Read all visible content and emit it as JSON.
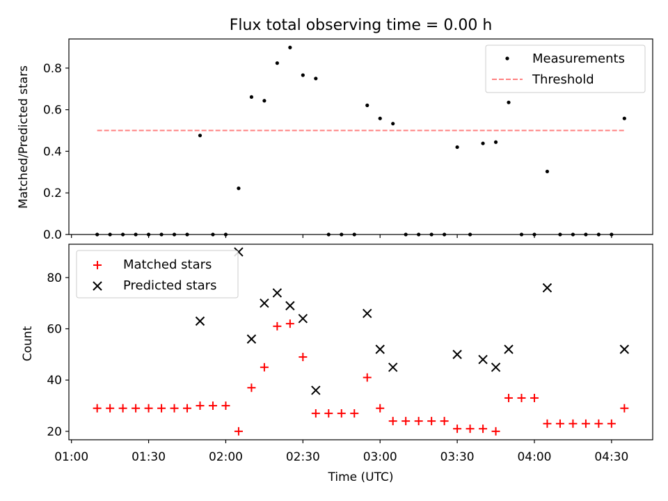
{
  "chart_data": [
    {
      "type": "scatter",
      "title": "Flux total observing time = 0.00 h",
      "xlabel": "",
      "ylabel": "Matched/Predicted stars",
      "xlim": [
        "00:59",
        "04:46"
      ],
      "ylim": [
        0,
        0.94
      ],
      "yticks": [
        "0.0",
        "0.2",
        "0.4",
        "0.6",
        "0.8"
      ],
      "grid": false,
      "legend_position": "top-right",
      "series": [
        {
          "name": "Measurements",
          "marker": "dot",
          "color": "#000000",
          "points": [
            {
              "x": "01:10",
              "y": 0.0
            },
            {
              "x": "01:15",
              "y": 0.0
            },
            {
              "x": "01:20",
              "y": 0.0
            },
            {
              "x": "01:25",
              "y": 0.0
            },
            {
              "x": "01:30",
              "y": 0.0
            },
            {
              "x": "01:35",
              "y": 0.0
            },
            {
              "x": "01:40",
              "y": 0.0
            },
            {
              "x": "01:45",
              "y": 0.0
            },
            {
              "x": "01:50",
              "y": 0.476
            },
            {
              "x": "01:55",
              "y": 0.0
            },
            {
              "x": "02:00",
              "y": 0.0
            },
            {
              "x": "02:05",
              "y": 0.222
            },
            {
              "x": "02:10",
              "y": 0.661
            },
            {
              "x": "02:15",
              "y": 0.643
            },
            {
              "x": "02:20",
              "y": 0.824
            },
            {
              "x": "02:25",
              "y": 0.899
            },
            {
              "x": "02:30",
              "y": 0.766
            },
            {
              "x": "02:35",
              "y": 0.75
            },
            {
              "x": "02:40",
              "y": 0.0
            },
            {
              "x": "02:45",
              "y": 0.0
            },
            {
              "x": "02:50",
              "y": 0.0
            },
            {
              "x": "02:55",
              "y": 0.621
            },
            {
              "x": "03:00",
              "y": 0.558
            },
            {
              "x": "03:05",
              "y": 0.533
            },
            {
              "x": "03:10",
              "y": 0.0
            },
            {
              "x": "03:15",
              "y": 0.0
            },
            {
              "x": "03:20",
              "y": 0.0
            },
            {
              "x": "03:25",
              "y": 0.0
            },
            {
              "x": "03:30",
              "y": 0.42
            },
            {
              "x": "03:35",
              "y": 0.0
            },
            {
              "x": "03:40",
              "y": 0.438
            },
            {
              "x": "03:45",
              "y": 0.444
            },
            {
              "x": "03:50",
              "y": 0.635
            },
            {
              "x": "03:55",
              "y": 0.0
            },
            {
              "x": "04:00",
              "y": 0.0
            },
            {
              "x": "04:05",
              "y": 0.303
            },
            {
              "x": "04:10",
              "y": 0.0
            },
            {
              "x": "04:15",
              "y": 0.0
            },
            {
              "x": "04:20",
              "y": 0.0
            },
            {
              "x": "04:25",
              "y": 0.0
            },
            {
              "x": "04:30",
              "y": 0.0
            },
            {
              "x": "04:35",
              "y": 0.558
            }
          ]
        },
        {
          "name": "Threshold",
          "style": "dashed-line",
          "color": "#ff7f7f",
          "points": [
            {
              "x": "01:10",
              "y": 0.5
            },
            {
              "x": "04:35",
              "y": 0.5
            }
          ]
        }
      ]
    },
    {
      "type": "scatter",
      "title": "",
      "xlabel": "Time (UTC)",
      "ylabel": "Count",
      "xlim": [
        "00:59",
        "04:46"
      ],
      "ylim": [
        16.7,
        93
      ],
      "xticks": [
        "01:00",
        "01:30",
        "02:00",
        "02:30",
        "03:00",
        "03:30",
        "04:00",
        "04:30"
      ],
      "yticks": [
        "20",
        "40",
        "60",
        "80"
      ],
      "grid": false,
      "legend_position": "top-left",
      "series": [
        {
          "name": "Matched stars",
          "marker": "plus",
          "color": "#ff0000",
          "points": [
            {
              "x": "01:10",
              "y": 29
            },
            {
              "x": "01:15",
              "y": 29
            },
            {
              "x": "01:20",
              "y": 29
            },
            {
              "x": "01:25",
              "y": 29
            },
            {
              "x": "01:30",
              "y": 29
            },
            {
              "x": "01:35",
              "y": 29
            },
            {
              "x": "01:40",
              "y": 29
            },
            {
              "x": "01:45",
              "y": 29
            },
            {
              "x": "01:50",
              "y": 30
            },
            {
              "x": "01:55",
              "y": 30
            },
            {
              "x": "02:00",
              "y": 30
            },
            {
              "x": "02:05",
              "y": 20
            },
            {
              "x": "02:10",
              "y": 37
            },
            {
              "x": "02:15",
              "y": 45
            },
            {
              "x": "02:20",
              "y": 61
            },
            {
              "x": "02:25",
              "y": 62
            },
            {
              "x": "02:30",
              "y": 49
            },
            {
              "x": "02:35",
              "y": 27
            },
            {
              "x": "02:40",
              "y": 27
            },
            {
              "x": "02:45",
              "y": 27
            },
            {
              "x": "02:50",
              "y": 27
            },
            {
              "x": "02:55",
              "y": 41
            },
            {
              "x": "03:00",
              "y": 29
            },
            {
              "x": "03:05",
              "y": 24
            },
            {
              "x": "03:10",
              "y": 24
            },
            {
              "x": "03:15",
              "y": 24
            },
            {
              "x": "03:20",
              "y": 24
            },
            {
              "x": "03:25",
              "y": 24
            },
            {
              "x": "03:30",
              "y": 21
            },
            {
              "x": "03:35",
              "y": 21
            },
            {
              "x": "03:40",
              "y": 21
            },
            {
              "x": "03:45",
              "y": 20
            },
            {
              "x": "03:50",
              "y": 33
            },
            {
              "x": "03:55",
              "y": 33
            },
            {
              "x": "04:00",
              "y": 33
            },
            {
              "x": "04:05",
              "y": 23
            },
            {
              "x": "04:10",
              "y": 23
            },
            {
              "x": "04:15",
              "y": 23
            },
            {
              "x": "04:20",
              "y": 23
            },
            {
              "x": "04:25",
              "y": 23
            },
            {
              "x": "04:30",
              "y": 23
            },
            {
              "x": "04:35",
              "y": 29
            }
          ]
        },
        {
          "name": "Predicted stars",
          "marker": "cross",
          "color": "#000000",
          "points": [
            {
              "x": "01:50",
              "y": 63
            },
            {
              "x": "02:05",
              "y": 90
            },
            {
              "x": "02:10",
              "y": 56
            },
            {
              "x": "02:15",
              "y": 70
            },
            {
              "x": "02:20",
              "y": 74
            },
            {
              "x": "02:25",
              "y": 69
            },
            {
              "x": "02:30",
              "y": 64
            },
            {
              "x": "02:35",
              "y": 36
            },
            {
              "x": "02:55",
              "y": 66
            },
            {
              "x": "03:00",
              "y": 52
            },
            {
              "x": "03:05",
              "y": 45
            },
            {
              "x": "03:30",
              "y": 50
            },
            {
              "x": "03:40",
              "y": 48
            },
            {
              "x": "03:45",
              "y": 45
            },
            {
              "x": "03:50",
              "y": 52
            },
            {
              "x": "04:05",
              "y": 76
            },
            {
              "x": "04:35",
              "y": 52
            }
          ]
        }
      ]
    }
  ]
}
